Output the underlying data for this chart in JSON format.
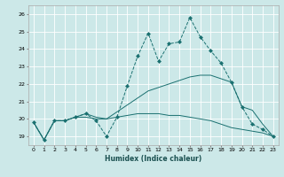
{
  "xlabel": "Humidex (Indice chaleur)",
  "xlim": [
    -0.5,
    23.5
  ],
  "ylim": [
    18.5,
    26.5
  ],
  "yticks": [
    19,
    20,
    21,
    22,
    23,
    24,
    25,
    26
  ],
  "xticks": [
    0,
    1,
    2,
    3,
    4,
    5,
    6,
    7,
    8,
    9,
    10,
    11,
    12,
    13,
    14,
    15,
    16,
    17,
    18,
    19,
    20,
    21,
    22,
    23
  ],
  "bg_color": "#cce8e8",
  "grid_color": "#ffffff",
  "line_color": "#1a7070",
  "dotted_x": [
    0,
    1,
    2,
    3,
    4,
    5,
    6,
    7,
    8,
    9,
    10,
    11,
    12,
    13,
    14,
    15,
    16,
    17,
    18,
    19,
    20,
    21,
    22,
    23
  ],
  "dotted_y": [
    19.8,
    18.8,
    19.9,
    19.9,
    20.1,
    20.3,
    19.9,
    19.0,
    20.1,
    21.9,
    23.6,
    24.9,
    23.3,
    24.3,
    24.4,
    25.8,
    24.7,
    23.9,
    23.2,
    22.1,
    20.7,
    19.7,
    19.4,
    19.0
  ],
  "upper_x": [
    0,
    1,
    2,
    3,
    4,
    5,
    6,
    7,
    8,
    9,
    10,
    11,
    12,
    13,
    14,
    15,
    16,
    17,
    18,
    19,
    20,
    21,
    22,
    23
  ],
  "upper_y": [
    19.8,
    18.8,
    19.9,
    19.9,
    20.1,
    20.3,
    20.1,
    20.0,
    20.4,
    20.8,
    21.2,
    21.6,
    21.8,
    22.0,
    22.2,
    22.4,
    22.5,
    22.5,
    22.3,
    22.1,
    20.7,
    20.5,
    19.7,
    19.0
  ],
  "lower_x": [
    0,
    1,
    2,
    3,
    4,
    5,
    6,
    7,
    8,
    9,
    10,
    11,
    12,
    13,
    14,
    15,
    16,
    17,
    18,
    19,
    20,
    21,
    22,
    23
  ],
  "lower_y": [
    19.8,
    18.8,
    19.9,
    19.9,
    20.1,
    20.1,
    20.0,
    20.0,
    20.1,
    20.2,
    20.3,
    20.3,
    20.3,
    20.2,
    20.2,
    20.1,
    20.0,
    19.9,
    19.7,
    19.5,
    19.4,
    19.3,
    19.2,
    19.0
  ]
}
